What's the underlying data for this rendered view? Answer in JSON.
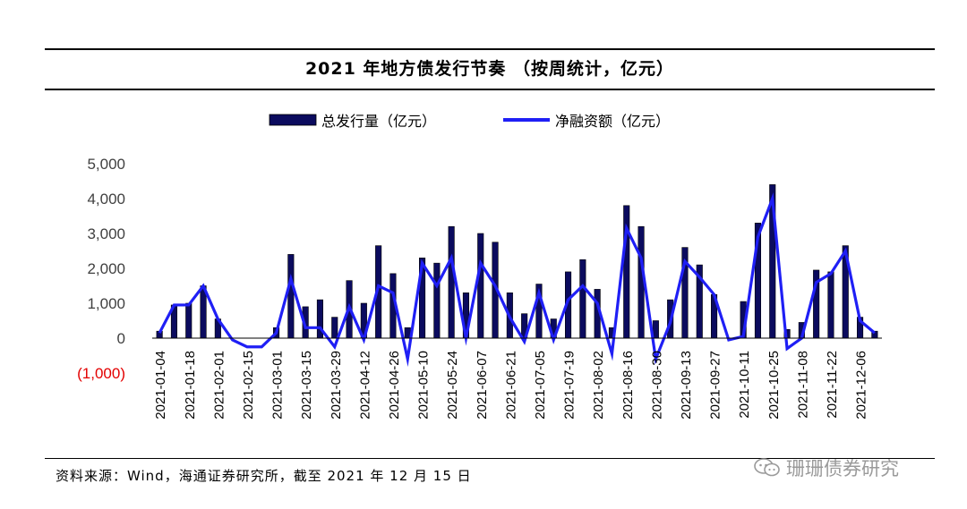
{
  "chart_data": {
    "type": "bar",
    "title": "2021 年地方债发行节奏 （按周统计，亿元）",
    "ylim": [
      -1000,
      5000
    ],
    "yticks": [
      -1000,
      0,
      1000,
      2000,
      3000,
      4000,
      5000
    ],
    "ytick_labels": [
      "(1,000)",
      "0",
      "1,000",
      "2,000",
      "3,000",
      "4,000",
      "5,000"
    ],
    "ytick_colors": [
      "#e30000",
      "#404040",
      "#404040",
      "#404040",
      "#404040",
      "#404040",
      "#404040"
    ],
    "legend_position": "top-center",
    "x": [
      "2021-01-04",
      "2021-01-11",
      "2021-01-18",
      "2021-01-25",
      "2021-02-01",
      "2021-02-08",
      "2021-02-15",
      "2021-02-22",
      "2021-03-01",
      "2021-03-08",
      "2021-03-15",
      "2021-03-22",
      "2021-03-29",
      "2021-04-05",
      "2021-04-12",
      "2021-04-19",
      "2021-04-26",
      "2021-05-03",
      "2021-05-10",
      "2021-05-17",
      "2021-05-24",
      "2021-05-31",
      "2021-06-07",
      "2021-06-14",
      "2021-06-21",
      "2021-06-28",
      "2021-07-05",
      "2021-07-12",
      "2021-07-19",
      "2021-07-26",
      "2021-08-02",
      "2021-08-09",
      "2021-08-16",
      "2021-08-23",
      "2021-08-30",
      "2021-09-06",
      "2021-09-13",
      "2021-09-20",
      "2021-09-27",
      "2021-10-04",
      "2021-10-11",
      "2021-10-18",
      "2021-10-25",
      "2021-11-01",
      "2021-11-08",
      "2021-11-15",
      "2021-11-22",
      "2021-11-29",
      "2021-12-06",
      "2021-12-13"
    ],
    "xtick_labels": [
      "2021-01-04",
      "2021-01-18",
      "2021-02-01",
      "2021-02-15",
      "2021-03-01",
      "2021-03-15",
      "2021-03-29",
      "2021-04-12",
      "2021-04-26",
      "2021-05-10",
      "2021-05-24",
      "2021-06-07",
      "2021-06-21",
      "2021-07-05",
      "2021-07-19",
      "2021-08-02",
      "2021-08-16",
      "2021-08-30",
      "2021-09-13",
      "2021-09-27",
      "2021-10-11",
      "2021-10-25",
      "2021-11-08",
      "2021-11-22",
      "2021-12-06"
    ],
    "series": [
      {
        "name": "总发行量（亿元）",
        "type": "bar",
        "color": "#0b0b5e",
        "values": [
          200,
          950,
          1000,
          1500,
          550,
          0,
          0,
          0,
          300,
          2400,
          900,
          1100,
          600,
          1650,
          1000,
          2650,
          1850,
          300,
          2300,
          2150,
          3200,
          1300,
          3000,
          2750,
          1300,
          700,
          1550,
          550,
          1900,
          2250,
          1400,
          300,
          3800,
          3200,
          500,
          1100,
          2600,
          2100,
          1250,
          0,
          1050,
          3300,
          4400,
          250,
          450,
          1950,
          1900,
          2650,
          600,
          200
        ]
      },
      {
        "name": "净融资额（亿元）",
        "type": "line",
        "color": "#1f1ff5",
        "values": [
          150,
          950,
          950,
          1500,
          550,
          -50,
          -250,
          -250,
          150,
          1700,
          300,
          300,
          -250,
          900,
          -50,
          1500,
          1300,
          -600,
          2150,
          1500,
          2300,
          0,
          2150,
          1500,
          600,
          -100,
          1300,
          -50,
          1100,
          1500,
          1000,
          -450,
          3150,
          2300,
          -600,
          450,
          2200,
          1750,
          1250,
          -50,
          50,
          2900,
          4000,
          -300,
          0,
          1600,
          1850,
          2500,
          500,
          150
        ]
      }
    ]
  },
  "footer": {
    "source": "资料来源：Wind，海通证券研究所，截至 2021 年 12 月 15 日",
    "watermark": "珊珊债券研究"
  }
}
